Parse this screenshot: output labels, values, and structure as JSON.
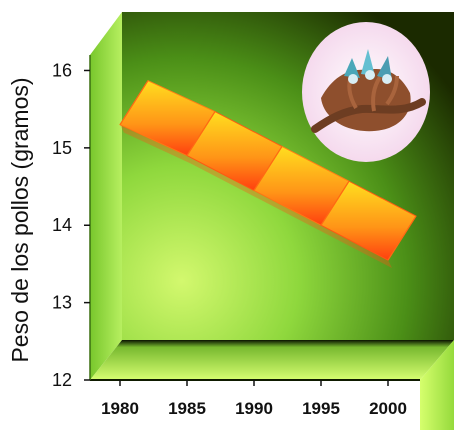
{
  "chart_data": {
    "type": "area",
    "title": "",
    "xlabel": "",
    "ylabel": "Peso de los pollos (gramos)",
    "x": [
      1980,
      1985,
      1990,
      1995,
      2000
    ],
    "x_ticks": [
      "1980",
      "1985",
      "1990",
      "1995",
      "2000"
    ],
    "y_ticks": [
      "12",
      "13",
      "14",
      "15",
      "16"
    ],
    "ylim": [
      12,
      16.2
    ],
    "series": [
      {
        "name": "",
        "values": [
          15.3,
          14.9,
          14.45,
          14.0,
          13.55
        ]
      }
    ],
    "grid": false,
    "legend": "none",
    "style": "3d-ribbon",
    "colors": {
      "ribbon_top": "#ffde1f",
      "ribbon_bottom": "#ff4a10",
      "wall_light": "#c7f06a",
      "wall_dark": "#1a2a00",
      "side_wall": "#8ed43a",
      "floor": "#c8ea58"
    },
    "decoration": {
      "icon": "bird-nest-with-chicks-icon",
      "icon_background": "#f6d6ef"
    }
  }
}
